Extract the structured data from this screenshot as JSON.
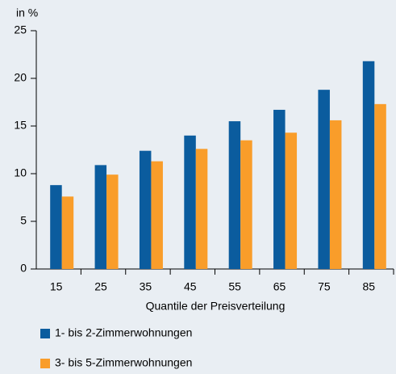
{
  "chart_data": {
    "type": "bar",
    "y_label": "in %",
    "x_label": "Quantile der Preisverteilung",
    "categories": [
      "15",
      "25",
      "35",
      "45",
      "55",
      "65",
      "75",
      "85"
    ],
    "series": [
      {
        "name": "1- bis 2-Zimmerwohnungen",
        "color": "#0b5c9e",
        "values": [
          8.8,
          10.9,
          12.4,
          14.0,
          15.5,
          16.7,
          18.8,
          21.8
        ]
      },
      {
        "name": "3- bis 5-Zimmerwohnungen",
        "color": "#f99d2a",
        "values": [
          7.6,
          9.9,
          11.3,
          12.6,
          13.5,
          14.3,
          15.6,
          17.3
        ]
      }
    ],
    "ylim": [
      0,
      25
    ],
    "yticks": [
      0,
      5,
      10,
      15,
      20,
      25
    ],
    "grid": false,
    "legend": "bottom"
  }
}
